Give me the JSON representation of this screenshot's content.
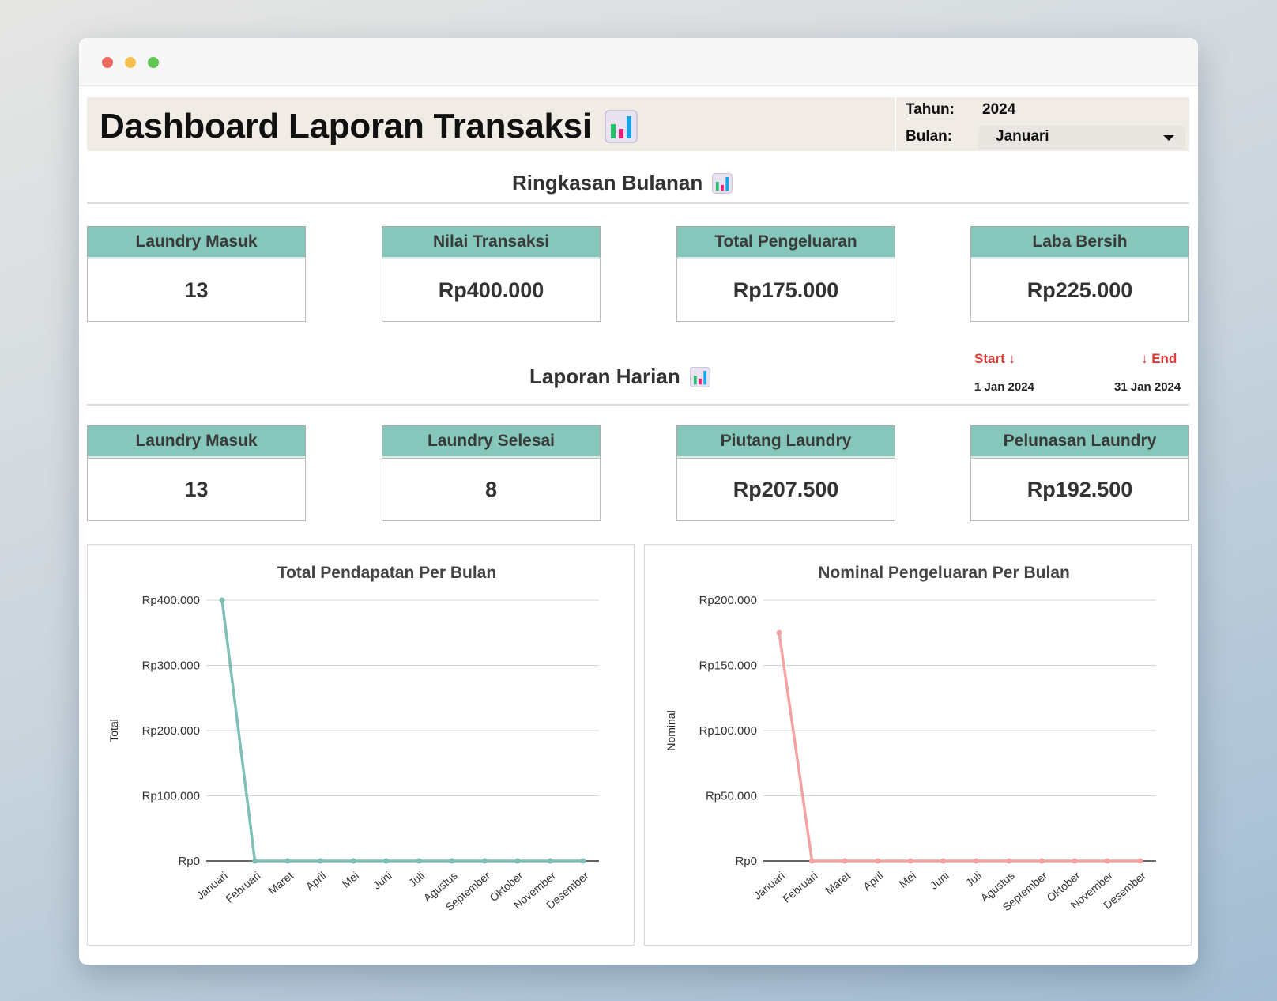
{
  "header": {
    "title": "Dashboard Laporan Transaksi",
    "title_icon": "bar-chart-emoji",
    "year_label": "Tahun:",
    "year_value": "2024",
    "month_label": "Bulan:",
    "month_value": "Januari"
  },
  "monthly_summary": {
    "title": "Ringkasan Bulanan",
    "cards": [
      {
        "label": "Laundry Masuk",
        "value": "13"
      },
      {
        "label": "Nilai Transaksi",
        "value": "Rp400.000"
      },
      {
        "label": "Total Pengeluaran",
        "value": "Rp175.000"
      },
      {
        "label": "Laba Bersih",
        "value": "Rp225.000"
      }
    ]
  },
  "date_range": {
    "start_label": "Start ↓",
    "end_label": "↓ End",
    "start_date": "1 Jan 2024",
    "end_date": "31 Jan 2024"
  },
  "daily_report": {
    "title": "Laporan Harian",
    "cards": [
      {
        "label": "Laundry Masuk",
        "value": "13"
      },
      {
        "label": "Laundry Selesai",
        "value": "8"
      },
      {
        "label": "Piutang Laundry",
        "value": "Rp207.500"
      },
      {
        "label": "Pelunasan Laundry",
        "value": "Rp192.500"
      }
    ]
  },
  "colors": {
    "card_header": "#86c7bb",
    "income_line": "#7fbfb8",
    "expense_line": "#f4a3a3",
    "range_accent": "#e53935"
  },
  "chart_data": [
    {
      "type": "line",
      "title": "Total Pendapatan Per Bulan",
      "xlabel": "",
      "ylabel": "Total",
      "categories": [
        "Januari",
        "Februari",
        "Maret",
        "April",
        "Mei",
        "Juni",
        "Juli",
        "Agustus",
        "September",
        "Oktober",
        "November",
        "Desember"
      ],
      "series": [
        {
          "values": [
            400000,
            0,
            0,
            0,
            0,
            0,
            0,
            0,
            0,
            0,
            0,
            0
          ]
        }
      ],
      "ylim": [
        0,
        400000
      ],
      "yticks": [
        0,
        100000,
        200000,
        300000,
        400000
      ],
      "ytick_labels": [
        "Rp0",
        "Rp100.000",
        "Rp200.000",
        "Rp300.000",
        "Rp400.000"
      ],
      "grid": true,
      "legend": "none"
    },
    {
      "type": "line",
      "title": "Nominal Pengeluaran Per Bulan",
      "xlabel": "",
      "ylabel": "Nominal",
      "categories": [
        "Januari",
        "Februari",
        "Maret",
        "April",
        "Mei",
        "Juni",
        "Juli",
        "Agustus",
        "September",
        "Oktober",
        "November",
        "Desember"
      ],
      "series": [
        {
          "values": [
            175000,
            0,
            0,
            0,
            0,
            0,
            0,
            0,
            0,
            0,
            0,
            0
          ]
        }
      ],
      "ylim": [
        0,
        200000
      ],
      "yticks": [
        0,
        50000,
        100000,
        150000,
        200000
      ],
      "ytick_labels": [
        "Rp0",
        "Rp50.000",
        "Rp100.000",
        "Rp150.000",
        "Rp200.000"
      ],
      "grid": true,
      "legend": "none"
    }
  ]
}
